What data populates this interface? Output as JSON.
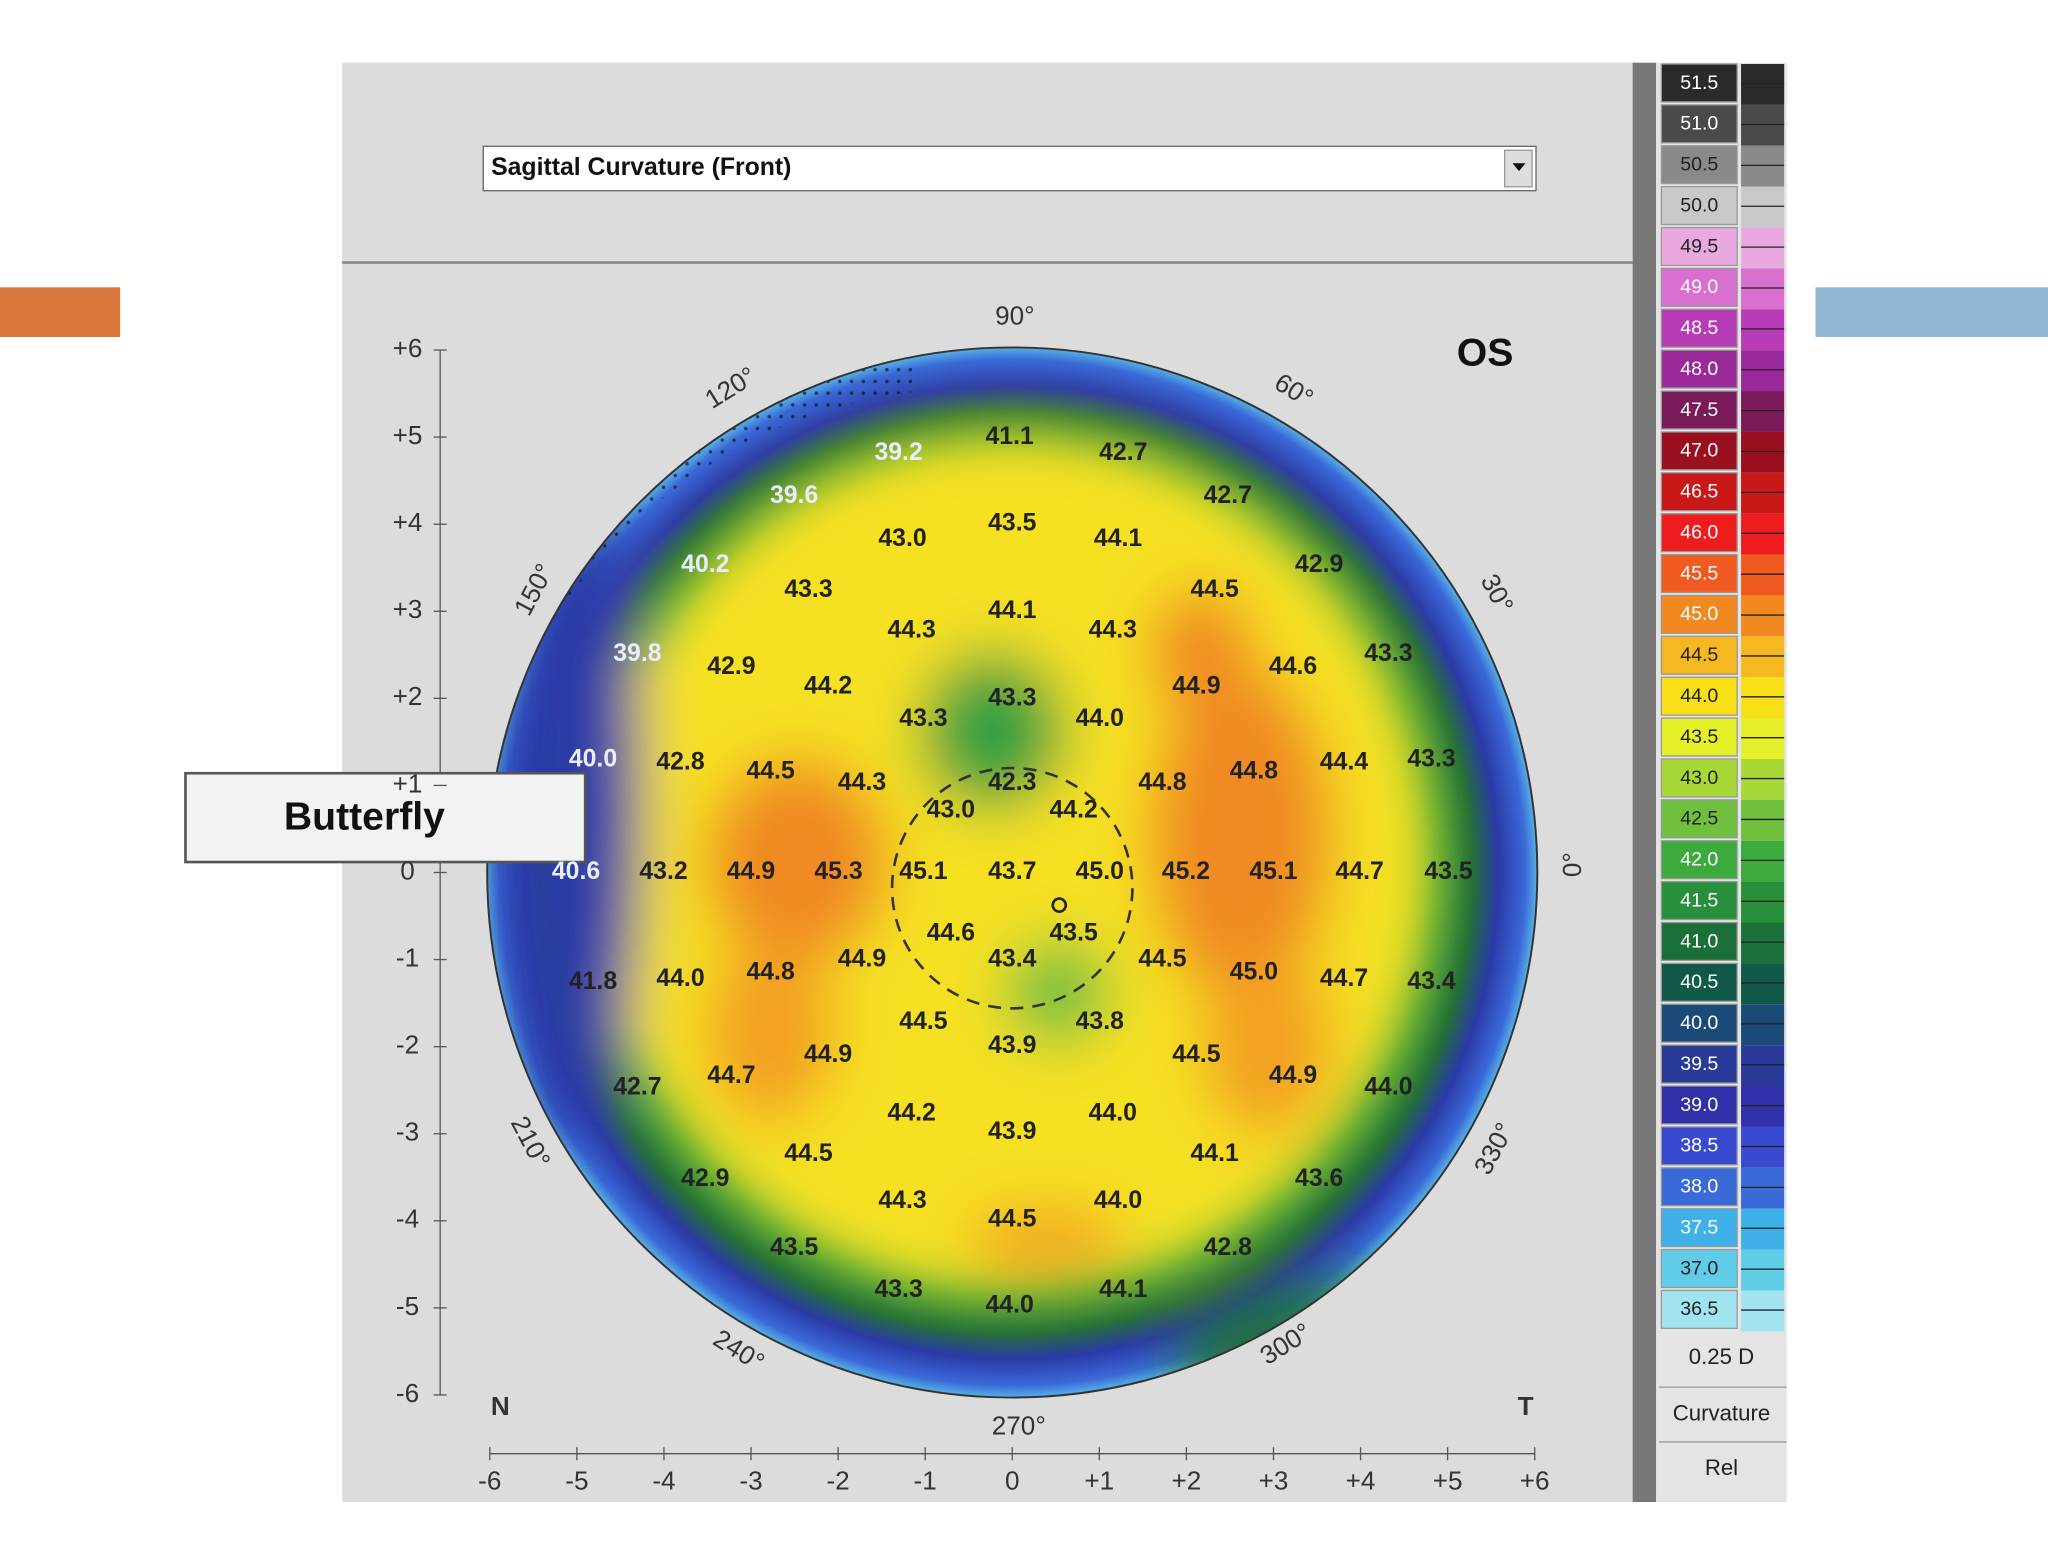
{
  "dropdown": {
    "label": "Sagittal Curvature (Front)"
  },
  "eye": "OS",
  "callout": "Butterfly",
  "angles": [
    "90°",
    "60°",
    "30°",
    "0°",
    "330°",
    "300°",
    "270°",
    "240°",
    "210°",
    "150°",
    "120°"
  ],
  "y_axis": [
    "+6",
    "+5",
    "+4",
    "+3",
    "+2",
    "+1",
    "0",
    "-1",
    "-2",
    "-3",
    "-4",
    "-5",
    "-6"
  ],
  "x_axis": [
    "-6",
    "-5",
    "-4",
    "-3",
    "-2",
    "-1",
    "0",
    "+1",
    "+2",
    "+3",
    "+4",
    "+5",
    "+6"
  ],
  "corners": [
    "N",
    "T"
  ],
  "readings": [
    "39.2",
    "41.1",
    "42.7",
    "39.6",
    "42.7",
    "43.0",
    "43.5",
    "44.1",
    "40.2",
    "42.9",
    "43.3",
    "44.5",
    "44.3",
    "44.1",
    "44.3",
    "39.8",
    "42.9",
    "44.6",
    "43.3",
    "44.2",
    "43.3",
    "44.9",
    "43.3",
    "44.0",
    "40.0",
    "42.8",
    "44.5",
    "44.3",
    "42.3",
    "44.8",
    "44.8",
    "44.4",
    "43.3",
    "43.0",
    "44.2",
    "40.6",
    "43.2",
    "44.9",
    "45.3",
    "45.1",
    "43.7",
    "45.0",
    "45.2",
    "45.1",
    "44.7",
    "43.5",
    "44.6",
    "43.5",
    "43.4",
    "44.9",
    "44.5",
    "41.8",
    "44.0",
    "44.8",
    "45.0",
    "44.7",
    "43.4",
    "44.5",
    "43.8",
    "43.9",
    "44.9",
    "44.5",
    "42.7",
    "44.7",
    "44.9",
    "44.0",
    "44.2",
    "44.0",
    "43.9",
    "44.5",
    "44.1",
    "42.9",
    "43.6",
    "44.3",
    "44.5",
    "44.0",
    "43.5",
    "42.8",
    "43.3",
    "44.0",
    "44.1"
  ],
  "scale": {
    "labels": [
      "51.5",
      "51.0",
      "50.5",
      "50.0",
      "49.5",
      "49.0",
      "48.5",
      "48.0",
      "47.5",
      "47.0",
      "46.5",
      "46.0",
      "45.5",
      "45.0",
      "44.5",
      "44.0",
      "43.5",
      "43.0",
      "42.5",
      "42.0",
      "41.5",
      "41.0",
      "40.5",
      "40.0",
      "39.5",
      "39.0",
      "38.5",
      "38.0",
      "37.5",
      "37.0",
      "36.5"
    ],
    "colors": [
      "#2a2a2a",
      "#4a4a4a",
      "#8a8a8a",
      "#c8c8c8",
      "#e9a8e0",
      "#d870cf",
      "#b83cb5",
      "#9a2a9a",
      "#7a1a5a",
      "#9a1020",
      "#c81818",
      "#ee1c1c",
      "#f05a20",
      "#f08a20",
      "#f5b820",
      "#f8e018",
      "#e6f028",
      "#a8d838",
      "#70c040",
      "#3caa3c",
      "#28903a",
      "#1a7038",
      "#105848",
      "#1a4a78",
      "#2a3a98",
      "#3030a8",
      "#3a4ad0",
      "#3a6ad8",
      "#40b0e8",
      "#60cce8",
      "#a0e4f0"
    ],
    "step": "0.25 D",
    "mode": "Curvature",
    "ref": "Rel"
  }
}
